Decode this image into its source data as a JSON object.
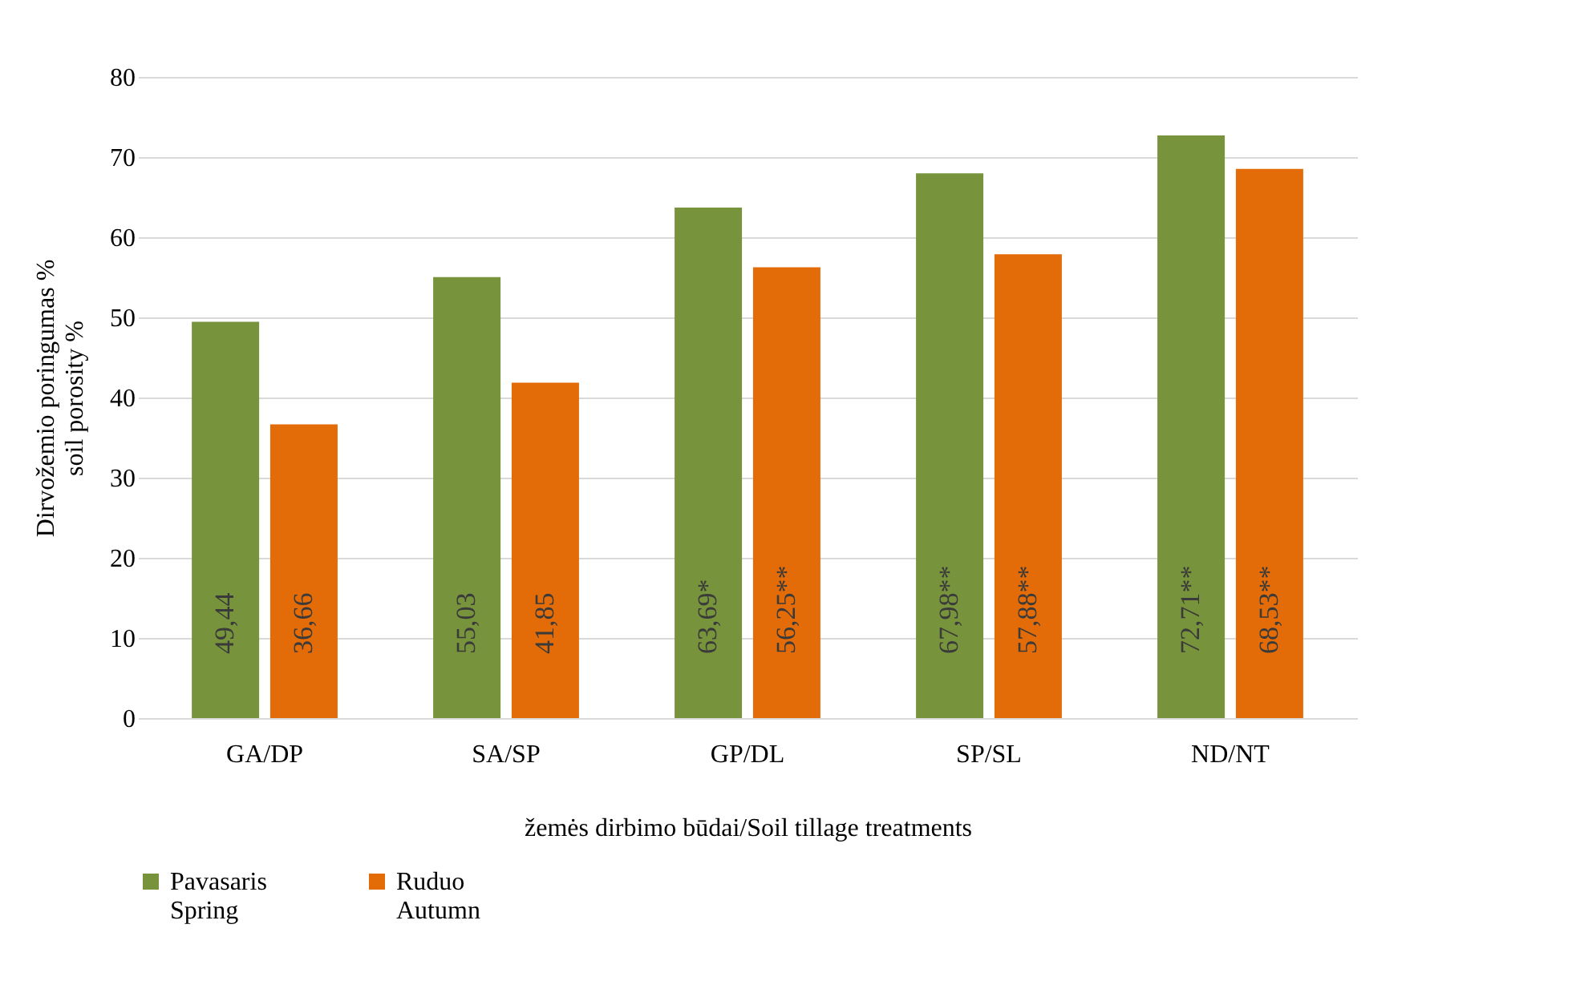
{
  "chart_data": {
    "type": "bar",
    "categories": [
      "GA/DP",
      "SA/SP",
      "GP/DL",
      "SP/SL",
      "ND/NT"
    ],
    "series": [
      {
        "name": "Pavasaris\nSpring",
        "color": "#77933c",
        "values": [
          49.44,
          55.03,
          63.69,
          67.98,
          72.71
        ],
        "value_labels": [
          "49,44",
          "55,03",
          "63,69*",
          "67,98**",
          "72,71**"
        ]
      },
      {
        "name": "Ruduo\nAutumn",
        "color": "#e36c09",
        "values": [
          36.66,
          41.85,
          56.25,
          57.88,
          68.53
        ],
        "value_labels": [
          "36,66",
          "41,85",
          "56,25**",
          "57,88**",
          "68,53**"
        ]
      }
    ],
    "ylabel": "Dirvožemio poringumas %\nsoil porosity %",
    "xlabel": "žemės dirbimo būdai/Soil tillage treatments",
    "ylim": [
      0,
      80
    ],
    "yticks": [
      0,
      10,
      20,
      30,
      40,
      50,
      60,
      70,
      80
    ],
    "grid": "y",
    "legend": "bottom"
  }
}
